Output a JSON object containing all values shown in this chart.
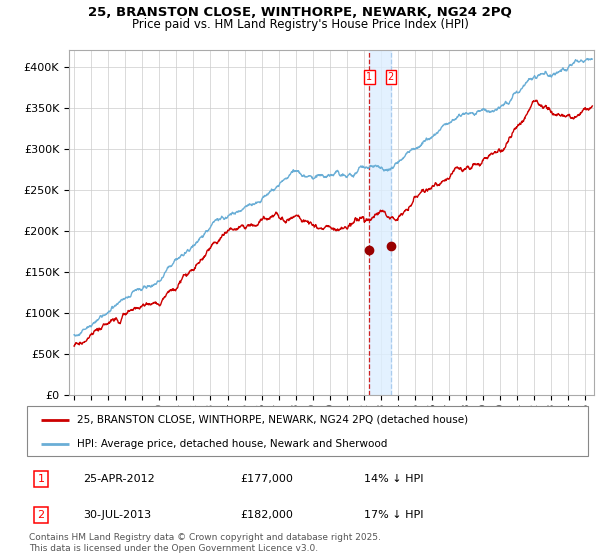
{
  "title1": "25, BRANSTON CLOSE, WINTHORPE, NEWARK, NG24 2PQ",
  "title2": "Price paid vs. HM Land Registry's House Price Index (HPI)",
  "ylabel_ticks": [
    "£0",
    "£50K",
    "£100K",
    "£150K",
    "£200K",
    "£250K",
    "£300K",
    "£350K",
    "£400K"
  ],
  "ytick_values": [
    0,
    50000,
    100000,
    150000,
    200000,
    250000,
    300000,
    350000,
    400000
  ],
  "ylim": [
    0,
    420000
  ],
  "xlim_start": 1994.7,
  "xlim_end": 2025.5,
  "legend1": "25, BRANSTON CLOSE, WINTHORPE, NEWARK, NG24 2PQ (detached house)",
  "legend2": "HPI: Average price, detached house, Newark and Sherwood",
  "sale1_date": "25-APR-2012",
  "sale1_price": 177000,
  "sale1_label": "14% ↓ HPI",
  "sale2_date": "30-JUL-2013",
  "sale2_price": 182000,
  "sale2_label": "17% ↓ HPI",
  "marker1_x": 2012.32,
  "marker2_x": 2013.58,
  "footnote": "Contains HM Land Registry data © Crown copyright and database right 2025.\nThis data is licensed under the Open Government Licence v3.0.",
  "hpi_color": "#6aaed6",
  "price_color": "#cc0000",
  "marker_color": "#990000",
  "vline1_color": "#cc2222",
  "vline2_color": "#aaccee",
  "grid_color": "#cccccc",
  "bg_color": "#ffffff",
  "shade_color": "#ddeeff"
}
